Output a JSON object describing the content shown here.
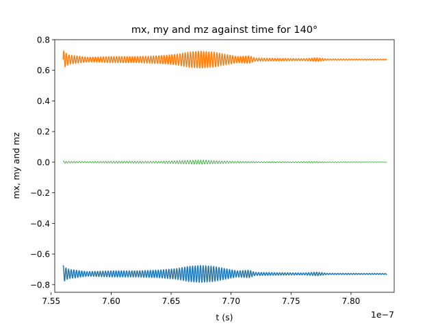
{
  "chart_data": {
    "type": "line",
    "title": "mx, my and mz against time for 140°",
    "xlabel": "t (s)",
    "ylabel": "mx, my and mz",
    "x_offset_label": "1e−7",
    "xlim": [
      7.553e-07,
      7.836e-07
    ],
    "ylim": [
      -0.85,
      0.8
    ],
    "x_ticks": [
      7.55e-07,
      7.6e-07,
      7.65e-07,
      7.7e-07,
      7.75e-07,
      7.8e-07
    ],
    "x_tick_labels": [
      "7.55",
      "7.60",
      "7.65",
      "7.70",
      "7.75",
      "7.80"
    ],
    "y_ticks": [
      0.8,
      0.6,
      0.4,
      0.2,
      0.0,
      -0.2,
      -0.4,
      -0.6,
      -0.8
    ],
    "y_tick_labels": [
      "0.8",
      "0.6",
      "0.4",
      "0.2",
      "0.0",
      "−0.2",
      "−0.4",
      "−0.6",
      "−0.8"
    ],
    "grid": false,
    "x_range": [
      7.56e-07,
      7.83e-07
    ],
    "series": [
      {
        "color": "#ff7f0e",
        "mean": 0.67,
        "envelope_x": [
          7.56e-07,
          7.562e-07,
          7.565e-07,
          7.58e-07,
          7.6e-07,
          7.62e-07,
          7.64e-07,
          7.655e-07,
          7.665e-07,
          7.675e-07,
          7.685e-07,
          7.695e-07,
          7.705e-07,
          7.715e-07,
          7.72e-07,
          7.74e-07,
          7.76e-07,
          7.772e-07,
          7.78e-07,
          7.83e-07
        ],
        "envelope_amp": [
          0.06,
          0.045,
          0.03,
          0.015,
          0.02,
          0.02,
          0.025,
          0.035,
          0.05,
          0.055,
          0.05,
          0.035,
          0.02,
          0.025,
          0.01,
          0.008,
          0.006,
          0.012,
          0.004,
          0.003
        ]
      },
      {
        "color": "#2ca02c",
        "mean": 0.0,
        "envelope_x": [
          7.56e-07,
          7.562e-07,
          7.58e-07,
          7.6e-07,
          7.64e-07,
          7.665e-07,
          7.675e-07,
          7.685e-07,
          7.7e-07,
          7.72e-07,
          7.75e-07,
          7.772e-07,
          7.78e-07,
          7.83e-07
        ],
        "envelope_amp": [
          0.008,
          0.006,
          0.004,
          0.006,
          0.006,
          0.012,
          0.014,
          0.01,
          0.006,
          0.004,
          0.003,
          0.005,
          0.002,
          0.001
        ]
      },
      {
        "color": "#1f77b4",
        "mean": -0.73,
        "envelope_x": [
          7.56e-07,
          7.562e-07,
          7.565e-07,
          7.58e-07,
          7.6e-07,
          7.62e-07,
          7.64e-07,
          7.655e-07,
          7.665e-07,
          7.675e-07,
          7.685e-07,
          7.695e-07,
          7.705e-07,
          7.715e-07,
          7.72e-07,
          7.74e-07,
          7.76e-07,
          7.772e-07,
          7.78e-07,
          7.83e-07
        ],
        "envelope_amp": [
          0.055,
          0.04,
          0.03,
          0.015,
          0.02,
          0.02,
          0.025,
          0.035,
          0.05,
          0.055,
          0.05,
          0.035,
          0.02,
          0.025,
          0.01,
          0.008,
          0.006,
          0.012,
          0.004,
          0.003
        ]
      }
    ]
  }
}
